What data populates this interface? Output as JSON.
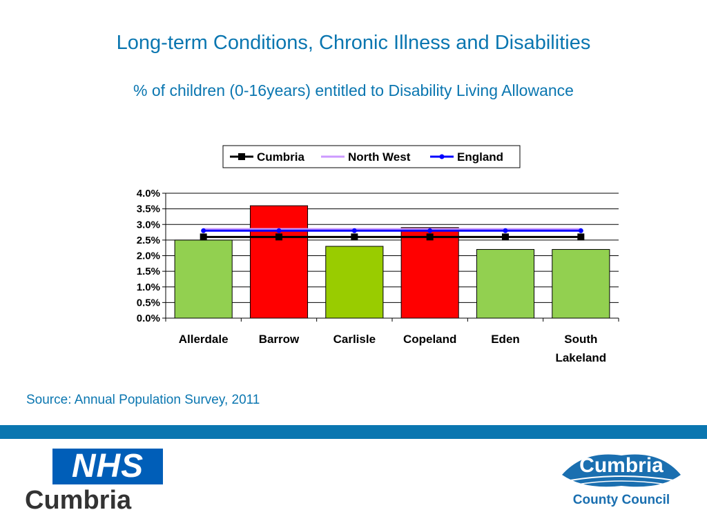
{
  "slide": {
    "title": "Long-term Conditions, Chronic Illness and Disabilities",
    "subtitle": "% of children (0-16years) entitled to Disability Living Allowance",
    "source": "Source: Annual Population Survey, 2011"
  },
  "logos": {
    "nhs_mark": "NHS",
    "nhs_name": "Cumbria",
    "council_name": "Cumbria",
    "council_subtitle": "County Council"
  },
  "colors": {
    "accent": "#0a76b0",
    "bar_light_green": "#92d050",
    "bar_green": "#99cc00",
    "bar_red": "#ff0000",
    "cumbria_line": "#000000",
    "north_west_line": "#cc99ff",
    "england_line": "#0000ff"
  },
  "chart_data": {
    "type": "bar",
    "title": "",
    "xlabel": "",
    "ylabel": "",
    "categories": [
      "Allerdale",
      "Barrow",
      "Carlisle",
      "Copeland",
      "Eden",
      "South Lakeland"
    ],
    "values": [
      2.5,
      3.6,
      2.3,
      2.9,
      2.2,
      2.2
    ],
    "bar_colors": [
      "#92d050",
      "#ff0000",
      "#99cc00",
      "#ff0000",
      "#92d050",
      "#92d050"
    ],
    "series": [
      {
        "name": "Cumbria",
        "type": "line",
        "values": [
          2.6,
          2.6,
          2.6,
          2.6,
          2.6,
          2.6
        ],
        "color": "#000000",
        "marker": "square"
      },
      {
        "name": "North West",
        "type": "line",
        "values": [
          2.85,
          2.85,
          2.85,
          2.85,
          2.85,
          2.85
        ],
        "color": "#cc99ff",
        "marker": "none"
      },
      {
        "name": "England",
        "type": "line",
        "values": [
          2.8,
          2.8,
          2.8,
          2.8,
          2.8,
          2.8
        ],
        "color": "#0000ff",
        "marker": "circle"
      }
    ],
    "ylim": [
      0,
      4
    ],
    "yticks": [
      0,
      0.5,
      1,
      1.5,
      2,
      2.5,
      3,
      3.5,
      4
    ],
    "ytick_labels": [
      "0.0%",
      "0.5%",
      "1.0%",
      "1.5%",
      "2.0%",
      "2.5%",
      "3.0%",
      "3.5%",
      "4.0%"
    ],
    "grid": true,
    "legend": "top"
  }
}
